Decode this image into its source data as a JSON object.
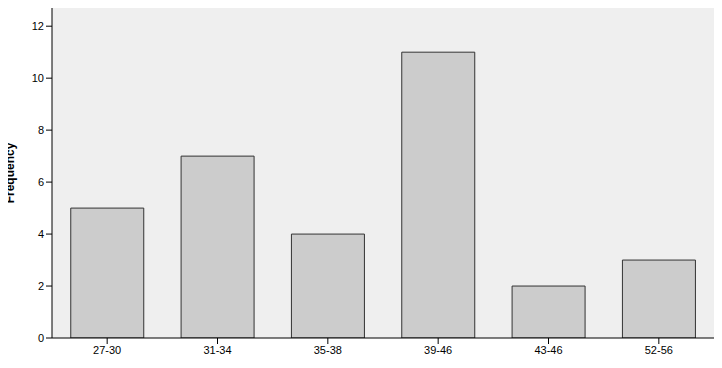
{
  "chart_data": {
    "type": "bar",
    "y_label": "Frequency",
    "categories": [
      "27-30",
      "31-34",
      "35-38",
      "39-46",
      "43-46",
      "52-56"
    ],
    "values": [
      5,
      7,
      4,
      11,
      2,
      3
    ],
    "color": "#cccccc",
    "ylim": [
      0,
      12.7
    ],
    "yticks": [
      0,
      2,
      4,
      6,
      8,
      10,
      12
    ],
    "grid": false
  }
}
